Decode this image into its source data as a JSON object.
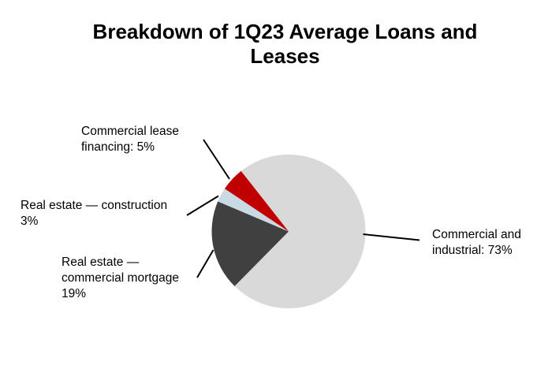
{
  "chart_data": {
    "type": "pie",
    "title": "Breakdown of 1Q23 Average Loans and Leases",
    "start_angle_deg": -38.2,
    "legend_position": "none",
    "label_style": "outside callouts with black leader lines",
    "background_color": "#FFFFFF",
    "slices": [
      {
        "id": "commercial-and-industrial",
        "label": "Commercial and industrial",
        "value": 73,
        "color": "#D9D9D9"
      },
      {
        "id": "real-estate-commercial-mortgage",
        "label": "Real estate — commercial mortgage",
        "value": 19,
        "color": "#404040"
      },
      {
        "id": "real-estate-construction",
        "label": "Real estate — construction",
        "value": 3,
        "color": "#C9DAE5"
      },
      {
        "id": "commercial-lease-financing",
        "label": "Commercial lease financing",
        "value": 5,
        "color": "#C00000"
      }
    ]
  },
  "callouts": [
    {
      "id": "lease",
      "lines": [
        "Commercial lease",
        "financing: 5%"
      ]
    },
    {
      "id": "construction",
      "lines": [
        "Real estate — construction",
        "3%"
      ]
    },
    {
      "id": "mortgage",
      "lines": [
        "Real estate —",
        "commercial mortgage",
        "19%"
      ]
    },
    {
      "id": "ci",
      "lines": [
        "Commercial and",
        "industrial: 73%"
      ]
    }
  ]
}
